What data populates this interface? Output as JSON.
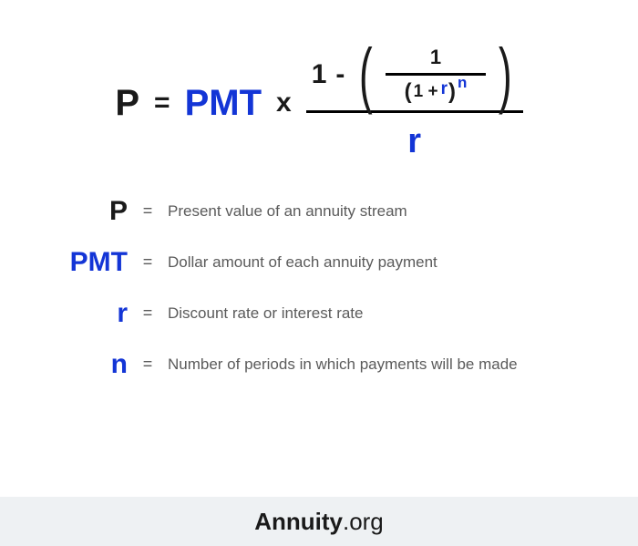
{
  "colors": {
    "blue": "#1335d6",
    "black": "#1a1a1a",
    "grayText": "#5a5a5a",
    "footerBg": "#eef1f3",
    "background": "#ffffff"
  },
  "formula": {
    "P": "P",
    "eq": "=",
    "PMT": "PMT",
    "times": "x",
    "one": "1",
    "minus": "-",
    "innerOne": "1",
    "innerOnePlus": "1 +",
    "r": "r",
    "n": "n",
    "outer_r": "r"
  },
  "definitions": [
    {
      "symbol": "P",
      "color": "black",
      "text": "Present value of an annuity stream"
    },
    {
      "symbol": "PMT",
      "color": "blue",
      "text": "Dollar amount of each annuity payment"
    },
    {
      "symbol": "r",
      "color": "blue",
      "text": "Discount rate or interest rate"
    },
    {
      "symbol": "n",
      "color": "blue",
      "text": "Number of periods in which payments will be made"
    }
  ],
  "footer": {
    "brand": "Annuity",
    "suffix": ".org"
  }
}
